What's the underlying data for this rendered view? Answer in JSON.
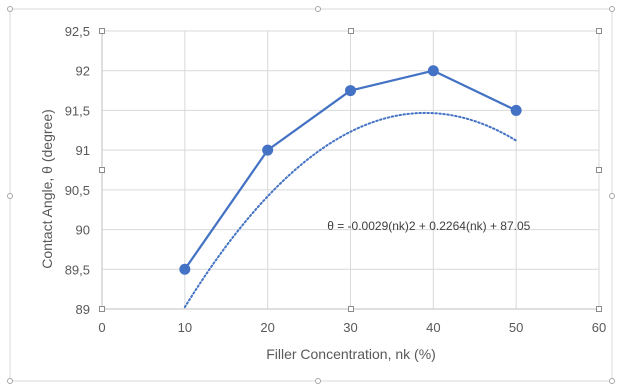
{
  "chart_data": {
    "type": "scatter",
    "xlabel": "Filler Concentration, nk (%)",
    "ylabel": "Contact Angle, θ  (degree)",
    "xlim": [
      0,
      60
    ],
    "ylim": [
      89,
      92.5
    ],
    "x_ticks": [
      "0",
      "10",
      "20",
      "30",
      "40",
      "50",
      "60"
    ],
    "y_ticks": [
      "89",
      "89,5",
      "90",
      "90,5",
      "91",
      "91,5",
      "92",
      "92,5"
    ],
    "grid": true,
    "series": [
      {
        "x": [
          10,
          20,
          30,
          40,
          50
        ],
        "y": [
          89.5,
          91.0,
          91.75,
          92.0,
          91.5
        ],
        "color": "#4472C4",
        "style": "solid line with circle markers"
      }
    ],
    "trendline": {
      "type": "polynomial (order 2)",
      "style": "dotted",
      "color": "#4472C4",
      "coefficients": [
        -0.0029,
        0.2264,
        87.05
      ],
      "x_range": [
        10,
        50
      ]
    },
    "annotations": [
      {
        "text": "θ = -0.0029(nk)2 + 0.2264(nk) + 87.05",
        "x": 36,
        "y": 90.06
      }
    ]
  }
}
